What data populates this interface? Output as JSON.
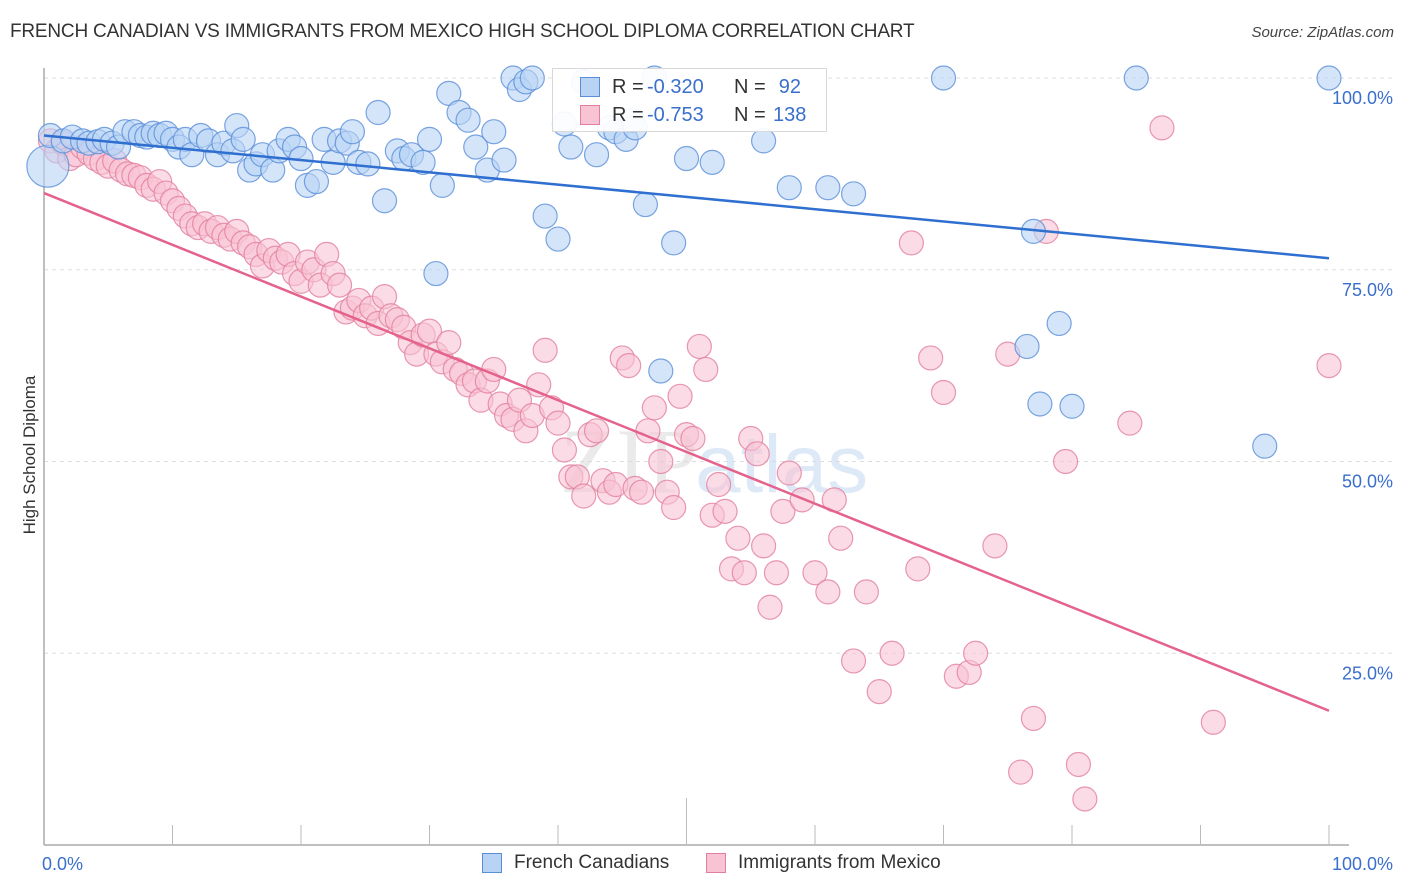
{
  "header": {
    "title": "FRENCH CANADIAN VS IMMIGRANTS FROM MEXICO HIGH SCHOOL DIPLOMA CORRELATION CHART",
    "source": "Source: ZipAtlas.com"
  },
  "watermark": {
    "zip": "ZIP",
    "atlas": "atlas"
  },
  "colors": {
    "blue_fill": "#b9d3f5",
    "blue_stroke": "#5a8fd8",
    "blue_line": "#2f6fd0",
    "pink_fill": "#f8c3d3",
    "pink_stroke": "#e27f9f",
    "pink_line": "#e4628c",
    "tick_text": "#3a6fcc"
  },
  "legend": {
    "rows": [
      {
        "r_label": "R =",
        "r_value": "-0.320",
        "n_label": "N =",
        "n_value": "92"
      },
      {
        "r_label": "R =",
        "r_value": "-0.753",
        "n_label": "N =",
        "n_value": "138"
      }
    ]
  },
  "bottom_legend": {
    "items": [
      {
        "label": "French Canadians"
      },
      {
        "label": "Immigrants from Mexico"
      }
    ]
  },
  "chart_data": {
    "type": "scatter",
    "title": "FRENCH CANADIAN VS IMMIGRANTS FROM MEXICO HIGH SCHOOL DIPLOMA CORRELATION CHART",
    "xlabel": "",
    "ylabel": "High School Diploma",
    "xlim": [
      0,
      100
    ],
    "ylim": [
      0,
      100
    ],
    "x_tick_labels": [
      "0.0%",
      "100.0%"
    ],
    "y_ticks": [
      25,
      50,
      75,
      100
    ],
    "y_tick_labels": [
      "25.0%",
      "50.0%",
      "75.0%",
      "100.0%"
    ],
    "grid": true,
    "legend_position": "top-center",
    "series": [
      {
        "name": "French Canadians",
        "r": -0.32,
        "n": 92,
        "trend": {
          "x": [
            0,
            100
          ],
          "y": [
            92.5,
            76.5
          ]
        },
        "points": [
          [
            0.3,
            88.5,
            "large"
          ],
          [
            0.5,
            92.5
          ],
          [
            1.5,
            91.8
          ],
          [
            2.2,
            92.3
          ],
          [
            3.0,
            91.8
          ],
          [
            3.5,
            91.5
          ],
          [
            4.2,
            91.7
          ],
          [
            4.7,
            92.0
          ],
          [
            5.3,
            91.5
          ],
          [
            5.8,
            91.0
          ],
          [
            6.3,
            93.0
          ],
          [
            7.0,
            93.0
          ],
          [
            7.5,
            92.5
          ],
          [
            8.0,
            92.3
          ],
          [
            8.5,
            92.8
          ],
          [
            9.0,
            92.5
          ],
          [
            9.5,
            92.8
          ],
          [
            10.0,
            92.0
          ],
          [
            10.5,
            91.0
          ],
          [
            11.0,
            92.0
          ],
          [
            11.5,
            90.0
          ],
          [
            12.2,
            92.5
          ],
          [
            12.8,
            91.8
          ],
          [
            13.5,
            90.0
          ],
          [
            14.0,
            91.5
          ],
          [
            14.7,
            90.5
          ],
          [
            15.0,
            93.8
          ],
          [
            15.5,
            92.0
          ],
          [
            16.0,
            88.0
          ],
          [
            16.5,
            88.8
          ],
          [
            17.0,
            90.0
          ],
          [
            17.8,
            88.0
          ],
          [
            18.3,
            90.5
          ],
          [
            19.0,
            92.0
          ],
          [
            19.5,
            91.0
          ],
          [
            20.0,
            89.5
          ],
          [
            20.5,
            86.0
          ],
          [
            21.2,
            86.5
          ],
          [
            21.8,
            92.0
          ],
          [
            22.5,
            89.0
          ],
          [
            23.0,
            91.8
          ],
          [
            23.6,
            91.5
          ],
          [
            24.0,
            93.0
          ],
          [
            24.5,
            89.0
          ],
          [
            25.2,
            88.8
          ],
          [
            26.0,
            95.5
          ],
          [
            26.5,
            84.0
          ],
          [
            27.5,
            90.5
          ],
          [
            28.0,
            89.5
          ],
          [
            28.6,
            90.0
          ],
          [
            29.5,
            89.0
          ],
          [
            30.0,
            92.0
          ],
          [
            30.5,
            74.5
          ],
          [
            31.0,
            86.0
          ],
          [
            31.5,
            98.0
          ],
          [
            32.3,
            95.5
          ],
          [
            33.0,
            94.5
          ],
          [
            33.6,
            91.0
          ],
          [
            34.5,
            88.0
          ],
          [
            35.0,
            93.0
          ],
          [
            35.8,
            89.3
          ],
          [
            36.5,
            100.0
          ],
          [
            37.0,
            98.5
          ],
          [
            37.5,
            99.5
          ],
          [
            38.0,
            100.0
          ],
          [
            39.0,
            82.0
          ],
          [
            40.0,
            79.0
          ],
          [
            40.5,
            94.0
          ],
          [
            41.0,
            91.0
          ],
          [
            42.0,
            99.5
          ],
          [
            43.0,
            90.0
          ],
          [
            44.0,
            93.5
          ],
          [
            44.5,
            93.0
          ],
          [
            45.3,
            92.0
          ],
          [
            45.8,
            94.5
          ],
          [
            46.0,
            93.5
          ],
          [
            46.8,
            83.5
          ],
          [
            47.5,
            100.0
          ],
          [
            48.0,
            61.8
          ],
          [
            49.0,
            78.5
          ],
          [
            50.0,
            89.5
          ],
          [
            52.0,
            89.0
          ],
          [
            56.0,
            91.8
          ],
          [
            58.0,
            85.7
          ],
          [
            61.0,
            85.7
          ],
          [
            63.0,
            84.9
          ],
          [
            70.0,
            100.0
          ],
          [
            77.0,
            80.0
          ],
          [
            76.5,
            65.0
          ],
          [
            77.5,
            57.5
          ],
          [
            79.0,
            68.0
          ],
          [
            80.0,
            57.2
          ],
          [
            85.0,
            100.0
          ],
          [
            95.0,
            52.0
          ],
          [
            100.0,
            100.0
          ]
        ]
      },
      {
        "name": "Immigrants from Mexico",
        "r": -0.753,
        "n": 138,
        "trend": {
          "x": [
            0,
            100
          ],
          "y": [
            85.0,
            17.5
          ]
        },
        "points": [
          [
            0.5,
            91.8
          ],
          [
            1.0,
            90.5
          ],
          [
            1.5,
            91.5
          ],
          [
            2.0,
            89.5
          ],
          [
            2.5,
            90.0
          ],
          [
            3.0,
            91.0
          ],
          [
            3.5,
            90.2
          ],
          [
            4.0,
            89.5
          ],
          [
            4.5,
            89.0
          ],
          [
            5.0,
            88.5
          ],
          [
            5.5,
            89.2
          ],
          [
            6.0,
            88.0
          ],
          [
            6.5,
            87.5
          ],
          [
            7.0,
            87.3
          ],
          [
            7.5,
            87.0
          ],
          [
            8.0,
            86.0
          ],
          [
            8.5,
            85.5
          ],
          [
            9.0,
            86.5
          ],
          [
            9.5,
            85.0
          ],
          [
            10.0,
            84.0
          ],
          [
            10.5,
            83.0
          ],
          [
            11.0,
            82.0
          ],
          [
            11.5,
            81.0
          ],
          [
            12.0,
            80.5
          ],
          [
            12.5,
            81.0
          ],
          [
            13.0,
            80.0
          ],
          [
            13.5,
            80.5
          ],
          [
            14.0,
            79.5
          ],
          [
            14.5,
            79.0
          ],
          [
            15.0,
            80.0
          ],
          [
            15.5,
            78.5
          ],
          [
            16.0,
            78.0
          ],
          [
            16.5,
            77.0
          ],
          [
            17.0,
            75.5
          ],
          [
            17.5,
            77.5
          ],
          [
            18.0,
            76.5
          ],
          [
            18.5,
            76.0
          ],
          [
            19.0,
            77.0
          ],
          [
            19.5,
            74.5
          ],
          [
            20.0,
            73.5
          ],
          [
            20.5,
            76.0
          ],
          [
            21.0,
            75.0
          ],
          [
            21.5,
            73.0
          ],
          [
            22.0,
            77.0
          ],
          [
            22.5,
            74.5
          ],
          [
            23.0,
            73.0
          ],
          [
            23.5,
            69.5
          ],
          [
            24.0,
            70.0
          ],
          [
            24.5,
            71.0
          ],
          [
            25.0,
            69.0
          ],
          [
            25.5,
            70.0
          ],
          [
            26.0,
            68.0
          ],
          [
            26.5,
            71.5
          ],
          [
            27.0,
            69.0
          ],
          [
            27.5,
            68.5
          ],
          [
            28.0,
            67.5
          ],
          [
            28.5,
            65.5
          ],
          [
            29.0,
            64.0
          ],
          [
            29.5,
            66.5
          ],
          [
            30.0,
            67.0
          ],
          [
            30.5,
            64.0
          ],
          [
            31.0,
            63.0
          ],
          [
            31.5,
            65.5
          ],
          [
            32.0,
            62.0
          ],
          [
            32.5,
            61.5
          ],
          [
            33.0,
            60.0
          ],
          [
            33.5,
            60.5
          ],
          [
            34.0,
            58.0
          ],
          [
            34.5,
            60.5
          ],
          [
            35.0,
            62.0
          ],
          [
            35.5,
            57.5
          ],
          [
            36.0,
            56.0
          ],
          [
            36.5,
            55.5
          ],
          [
            37.0,
            58.0
          ],
          [
            37.5,
            54.0
          ],
          [
            38.0,
            56.0
          ],
          [
            38.5,
            60.0
          ],
          [
            39.0,
            64.5
          ],
          [
            39.5,
            57.0
          ],
          [
            40.0,
            55.0
          ],
          [
            40.5,
            51.5
          ],
          [
            41.0,
            48.0
          ],
          [
            41.5,
            48.0
          ],
          [
            42.0,
            45.5
          ],
          [
            42.5,
            53.5
          ],
          [
            43.0,
            54.0
          ],
          [
            43.5,
            47.5
          ],
          [
            44.0,
            46.0
          ],
          [
            44.5,
            47.0
          ],
          [
            45.0,
            63.5
          ],
          [
            45.5,
            62.5
          ],
          [
            46.0,
            46.5
          ],
          [
            46.5,
            46.0
          ],
          [
            47.0,
            54.0
          ],
          [
            47.5,
            57.0
          ],
          [
            48.0,
            50.0
          ],
          [
            48.5,
            46.0
          ],
          [
            49.0,
            44.0
          ],
          [
            49.5,
            58.5
          ],
          [
            50.0,
            53.5
          ],
          [
            50.5,
            53.0
          ],
          [
            51.0,
            65.0
          ],
          [
            51.5,
            62.0
          ],
          [
            52.0,
            43.0
          ],
          [
            52.5,
            47.0
          ],
          [
            53.0,
            43.5
          ],
          [
            53.5,
            36.0
          ],
          [
            54.0,
            40.0
          ],
          [
            54.5,
            35.5
          ],
          [
            55.0,
            53.0
          ],
          [
            55.5,
            51.0
          ],
          [
            56.0,
            39.0
          ],
          [
            56.5,
            31.0
          ],
          [
            57.0,
            35.5
          ],
          [
            57.5,
            43.5
          ],
          [
            58.0,
            48.5
          ],
          [
            59.0,
            45.0
          ],
          [
            60.0,
            35.5
          ],
          [
            61.0,
            33.0
          ],
          [
            61.5,
            45.0
          ],
          [
            62.0,
            40.0
          ],
          [
            63.0,
            24.0
          ],
          [
            64.0,
            33.0
          ],
          [
            65.0,
            20.0
          ],
          [
            66.0,
            25.0
          ],
          [
            67.5,
            78.5
          ],
          [
            68.0,
            36.0
          ],
          [
            69.0,
            63.5
          ],
          [
            70.0,
            59.0
          ],
          [
            71.0,
            22.0
          ],
          [
            72.0,
            22.5
          ],
          [
            72.5,
            25.0
          ],
          [
            74.0,
            39.0
          ],
          [
            75.0,
            64.0
          ],
          [
            76.0,
            9.5
          ],
          [
            77.0,
            16.5
          ],
          [
            78.0,
            80.0
          ],
          [
            79.5,
            50.0
          ],
          [
            80.5,
            10.5
          ],
          [
            81.0,
            6.0
          ],
          [
            84.5,
            55.0
          ],
          [
            87.0,
            93.5
          ],
          [
            91.0,
            16.0
          ],
          [
            100.0,
            62.5
          ]
        ]
      }
    ]
  }
}
